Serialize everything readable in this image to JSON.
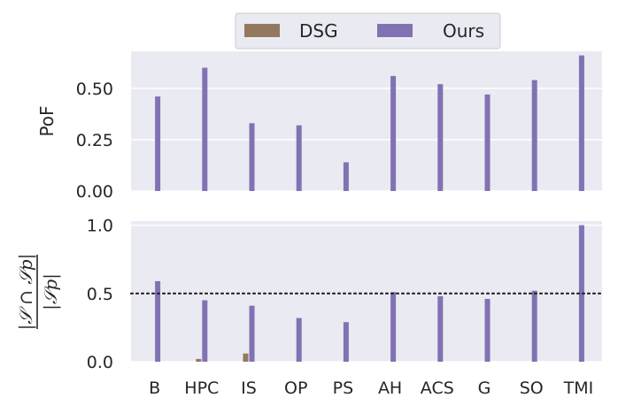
{
  "chart_data": [
    {
      "type": "bar",
      "panel": "top",
      "ylabel": "PoF",
      "ylim": [
        0,
        0.68
      ],
      "yticks": [
        "0.00",
        "0.25",
        "0.50"
      ],
      "ytick_values": [
        0,
        0.25,
        0.5
      ],
      "categories": [
        "B",
        "HPC",
        "IS",
        "OP",
        "PS",
        "AH",
        "ACS",
        "G",
        "SO",
        "TMI"
      ],
      "series": [
        {
          "name": "DSG",
          "color": "#937860",
          "values": [
            0,
            0,
            0,
            0,
            0,
            0,
            0,
            0,
            0,
            0
          ]
        },
        {
          "name": "Ours",
          "color": "#8172b3",
          "values": [
            0.46,
            0.6,
            0.33,
            0.32,
            0.14,
            0.56,
            0.52,
            0.47,
            0.54,
            0.66
          ]
        }
      ],
      "grid": true,
      "legend_position": "top-center"
    },
    {
      "type": "bar",
      "panel": "bottom",
      "ylabel": "|S ∩ Sp| / |Sp|",
      "ylabel_numerator": "|𝒮 ∩ 𝒮p|",
      "ylabel_denominator": "|𝒮p|",
      "ylim": [
        0,
        1.03
      ],
      "yticks": [
        "0.0",
        "0.5",
        "1.0"
      ],
      "ytick_values": [
        0,
        0.5,
        1.0
      ],
      "categories": [
        "B",
        "HPC",
        "IS",
        "OP",
        "PS",
        "AH",
        "ACS",
        "G",
        "SO",
        "TMI"
      ],
      "series": [
        {
          "name": "DSG",
          "color": "#937860",
          "values": [
            0.0,
            0.02,
            0.06,
            0.0,
            0.0,
            0.0,
            0.0,
            0.0,
            0.0,
            0.0
          ]
        },
        {
          "name": "Ours",
          "color": "#8172b3",
          "values": [
            0.59,
            0.45,
            0.41,
            0.32,
            0.29,
            0.51,
            0.48,
            0.46,
            0.52,
            1.0
          ]
        }
      ],
      "reference_line": {
        "value": 0.5,
        "style": "dotted",
        "color": "#262626"
      },
      "grid": true
    }
  ],
  "legend": {
    "items": [
      {
        "label": "DSG",
        "color": "#937860"
      },
      {
        "label": "Ours",
        "color": "#8172b3"
      }
    ]
  },
  "style": {
    "plot_background": "#eaeaf2",
    "grid_color": "#ffffff"
  }
}
